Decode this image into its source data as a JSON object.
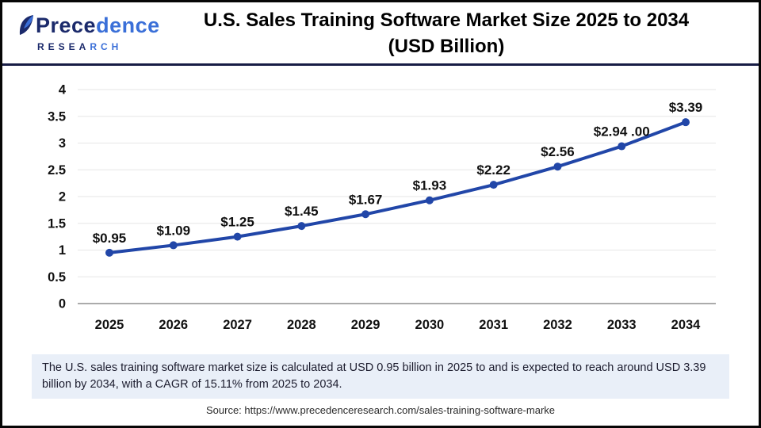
{
  "logo": {
    "name_part1": "Prece",
    "name_part2": "dence",
    "subname_part1": "RESEA",
    "subname_part2": "RCH"
  },
  "header": {
    "title_line1": "U.S. Sales Training Software Market Size 2025 to 2034",
    "title_line2": "(USD Billion)"
  },
  "chart_data": {
    "type": "line",
    "title": "U.S. Sales Training Software Market Size 2025 to 2034 (USD Billion)",
    "categories": [
      "2025",
      "2026",
      "2027",
      "2028",
      "2029",
      "2030",
      "2031",
      "2032",
      "2033",
      "2034"
    ],
    "values": [
      0.95,
      1.09,
      1.25,
      1.45,
      1.67,
      1.93,
      2.22,
      2.56,
      2.94,
      3.39
    ],
    "data_labels": [
      "$0.95",
      "$1.09",
      "$1.25",
      "$1.45",
      "$1.67",
      "$1.93",
      "$2.22",
      "$2.56",
      "$2.94 .00",
      "$3.39"
    ],
    "xlabel": "",
    "ylabel": "",
    "ylim": [
      0,
      4
    ],
    "ytick_labels": [
      "0",
      "0.5",
      "1",
      "1.5",
      "2",
      "2.5",
      "3",
      "3.5",
      "4"
    ],
    "grid": true,
    "legend": "none",
    "line_color": "#2146a8",
    "marker_color": "#2146a8",
    "gridline_color": "#e6e6e6",
    "axis_line_color": "#ababab",
    "label_color": "#111111"
  },
  "footer": {
    "summary": "The U.S. sales training software market size is calculated at USD 0.95 billion in 2025 to and is expected to reach around USD 3.39 billion by 2034, with a CAGR of 15.11% from 2025 to 2034.",
    "source": "Source: https://www.precedenceresearch.com/sales-training-software-marke"
  }
}
